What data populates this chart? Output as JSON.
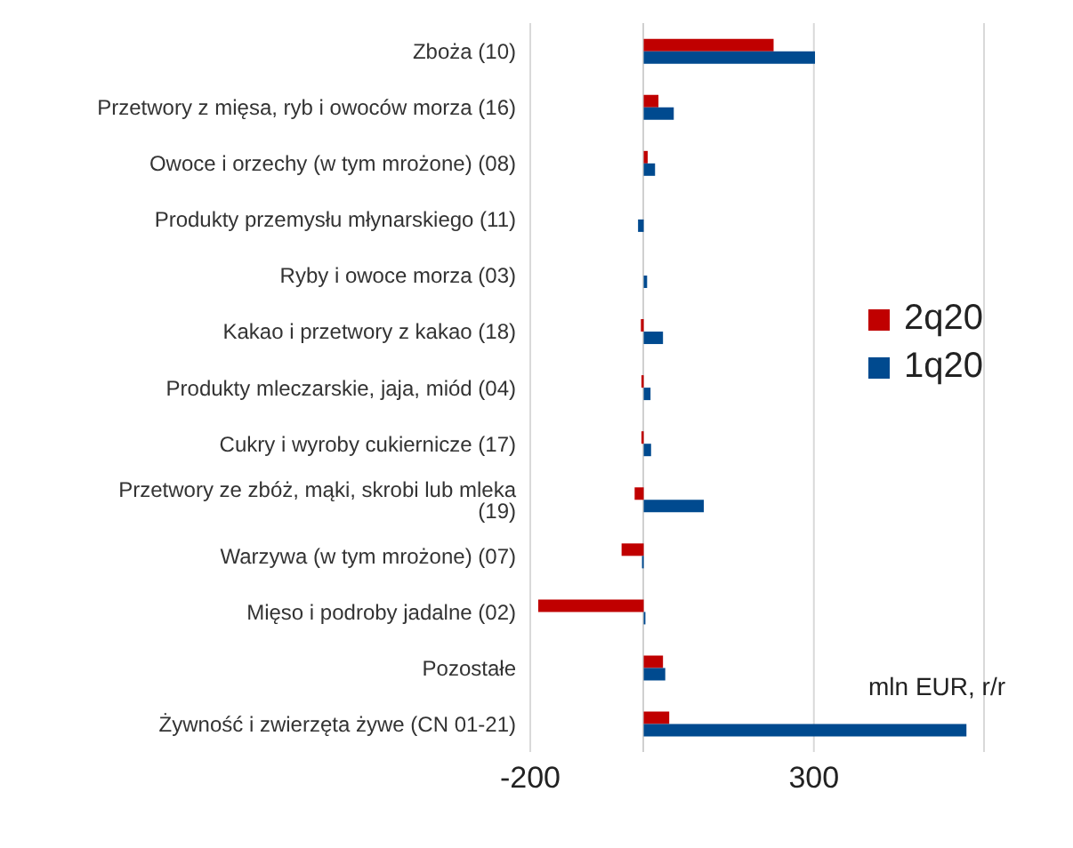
{
  "chart_data": {
    "type": "bar",
    "orientation": "horizontal",
    "categories": [
      "Zboża (10)",
      "Przetwory z mięsa, ryb i owoców morza (16)",
      "Owoce i orzechy (w tym mrożone) (08)",
      "Produkty przemysłu młynarskiego (11)",
      "Ryby i owoce morza (03)",
      "Kakao i przetwory z kakao (18)",
      "Produkty mleczarskie, jaja, miód (04)",
      "Cukry i wyroby cukiernicze (17)",
      "Przetwory ze zbóż, mąki, skrobi lub mleka (19)",
      "Warzywa (w tym mrożone) (07)",
      "Mięso i podroby jadalne (02)",
      "Pozostałe",
      "Żywność i zwierzęta żywe (CN 01-21)"
    ],
    "series": [
      {
        "name": "2q20",
        "color": "#c00000",
        "values": [
          229,
          26,
          7,
          null,
          null,
          -5,
          -4,
          -4,
          -16,
          -39,
          -186,
          34,
          45
        ]
      },
      {
        "name": "1q20",
        "color": "#004a8f",
        "values": [
          302,
          53,
          20,
          -10,
          6,
          34,
          12,
          13,
          106,
          -3,
          3,
          38,
          569
        ]
      }
    ],
    "xlim": [
      -200,
      600
    ],
    "xticks": [
      -200,
      300
    ],
    "grid": "x",
    "legend": "right",
    "annotations": [
      "mln EUR, r/r"
    ]
  }
}
